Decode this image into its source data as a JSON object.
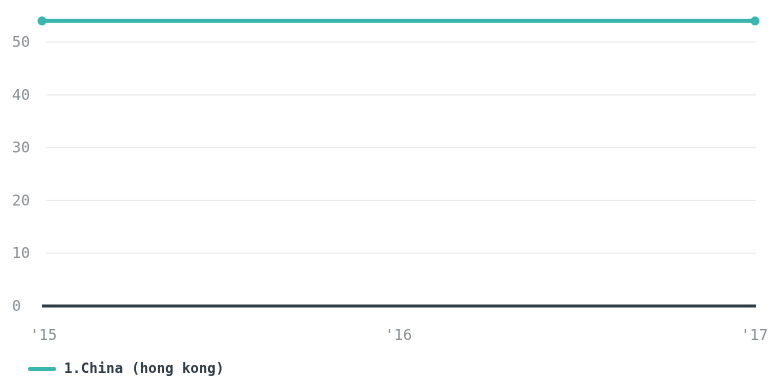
{
  "chart_data": {
    "type": "line",
    "title": "",
    "xlabel": "",
    "ylabel": "",
    "x": [
      2015,
      2017
    ],
    "x_ticks": [
      {
        "value": 2015,
        "label": "'15"
      },
      {
        "value": 2016,
        "label": "'16"
      },
      {
        "value": 2017,
        "label": "'17"
      }
    ],
    "y_ticks": [
      0,
      10,
      20,
      30,
      40,
      50
    ],
    "xlim": [
      2015,
      2017
    ],
    "ylim": [
      0,
      55.5
    ],
    "grid": true,
    "legend_position": "bottom-left",
    "series": [
      {
        "name": "1.China (hong kong)",
        "color": "#3ab5b0",
        "values": [
          54,
          54
        ]
      }
    ]
  },
  "colors": {
    "grid": "#e6e8ea",
    "baseline": "#2f3b45",
    "tick_text": "#8a8f94"
  }
}
